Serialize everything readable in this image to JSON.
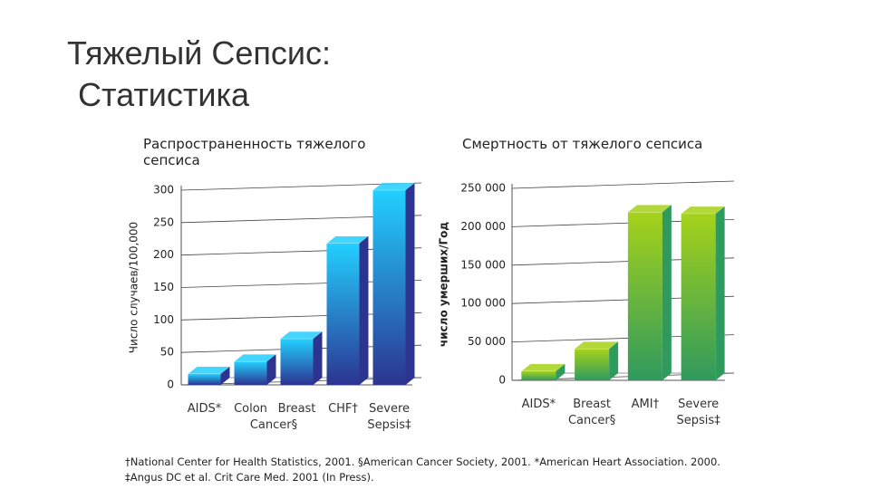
{
  "title": "Тяжелый Сепсис:",
  "subtitle": "Статистика",
  "chart_data": [
    {
      "type": "bar",
      "title": "Распространенность тяжелого сепсиса",
      "ylabel": "Число случаев/100,000",
      "categories": [
        "AIDS*",
        "Colon",
        "Breast",
        "CHF†",
        "Severe Sepsis‡"
      ],
      "shared_label": "Cancer§",
      "values": [
        17,
        36,
        71,
        218,
        300
      ],
      "colors": [
        "#22d0ff",
        "#2c3490"
      ],
      "ylim": [
        0,
        300
      ],
      "yticks": [
        0,
        50,
        100,
        150,
        200,
        250,
        300
      ],
      "grid": true
    },
    {
      "type": "bar",
      "title": "Смертность от тяжелого сепсиса",
      "ylabel": "число умерших/Год",
      "categories": [
        "AIDS*",
        "Breast Cancer§",
        "AMI†",
        "Severe Sepsis‡"
      ],
      "values": [
        12000,
        41000,
        219000,
        217000
      ],
      "colors": [
        "#a6d21a",
        "#2f9a5e"
      ],
      "ylim": [
        0,
        250000
      ],
      "yticks": [
        0,
        {
          "value": 50000,
          "label": "50 000"
        },
        {
          "value": 100000,
          "label": "100 000"
        },
        {
          "value": 150000,
          "label": "150 000"
        },
        {
          "value": 200000,
          "label": "200 000"
        },
        {
          "value": 250000,
          "label": "250 000"
        }
      ],
      "grid": true
    }
  ],
  "footnotes": [
    "†National Center for Health Statistics, 2001. §American Cancer Society, 2001. *American Heart Association. 2000.",
    "‡Angus DC et al. Crit Care Med. 2001 (In Press)."
  ]
}
